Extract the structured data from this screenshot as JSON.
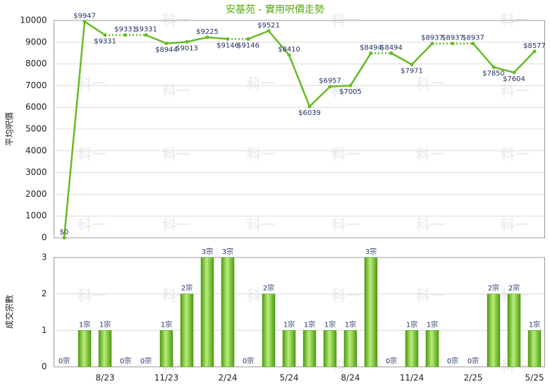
{
  "chart_data": [
    {
      "type": "line",
      "title": "安基苑 - 實用呎價走勢",
      "y_label": "平均呎價",
      "color": "#66bb22",
      "values": [
        0,
        9947,
        9331,
        9331,
        9331,
        8944,
        9013,
        9225,
        9146,
        9146,
        9521,
        8410,
        6039,
        6957,
        7005,
        8494,
        8494,
        7971,
        8937,
        8937,
        8937,
        7850,
        7604,
        8577
      ],
      "value_labels": [
        "$0",
        "$9947",
        "$9331",
        "$9331",
        "$9331",
        "$8944",
        "$9013",
        "$9225",
        "$9146",
        "$9146",
        "$9521",
        "$8410",
        "$6039",
        "$6957",
        "$7005",
        "$8494",
        "$8494",
        "$7971",
        "$8937",
        "$8937",
        "$8937",
        "$7850",
        "$7604",
        "$8577"
      ],
      "ylim": [
        0,
        10000
      ],
      "yticks": [
        0,
        1000,
        2000,
        3000,
        4000,
        5000,
        6000,
        7000,
        8000,
        9000,
        10000
      ],
      "grid": true,
      "watermark": "科一"
    },
    {
      "type": "bar",
      "y_label": "成交宗數",
      "color": "#66bb22",
      "categories": [
        null,
        null,
        "8/23",
        null,
        null,
        "11/23",
        null,
        null,
        "2/24",
        null,
        null,
        "5/24",
        null,
        null,
        "8/24",
        null,
        null,
        "11/24",
        null,
        null,
        "2/25",
        null,
        null,
        "5/25"
      ],
      "values": [
        0,
        1,
        1,
        0,
        0,
        1,
        2,
        3,
        3,
        0,
        2,
        1,
        1,
        1,
        1,
        3,
        0,
        1,
        1,
        0,
        0,
        2,
        2,
        1
      ],
      "value_labels": [
        "0宗",
        "1宗",
        "1宗",
        "0宗",
        "0宗",
        "1宗",
        "2宗",
        "3宗",
        "3宗",
        "0宗",
        "2宗",
        "1宗",
        "1宗",
        "1宗",
        "1宗",
        "3宗",
        "0宗",
        "1宗",
        "1宗",
        "0宗",
        "0宗",
        "2宗",
        "2宗",
        "1宗"
      ],
      "ylim": [
        0,
        3
      ],
      "yticks": [
        0,
        1,
        2,
        3
      ],
      "grid": true
    }
  ]
}
